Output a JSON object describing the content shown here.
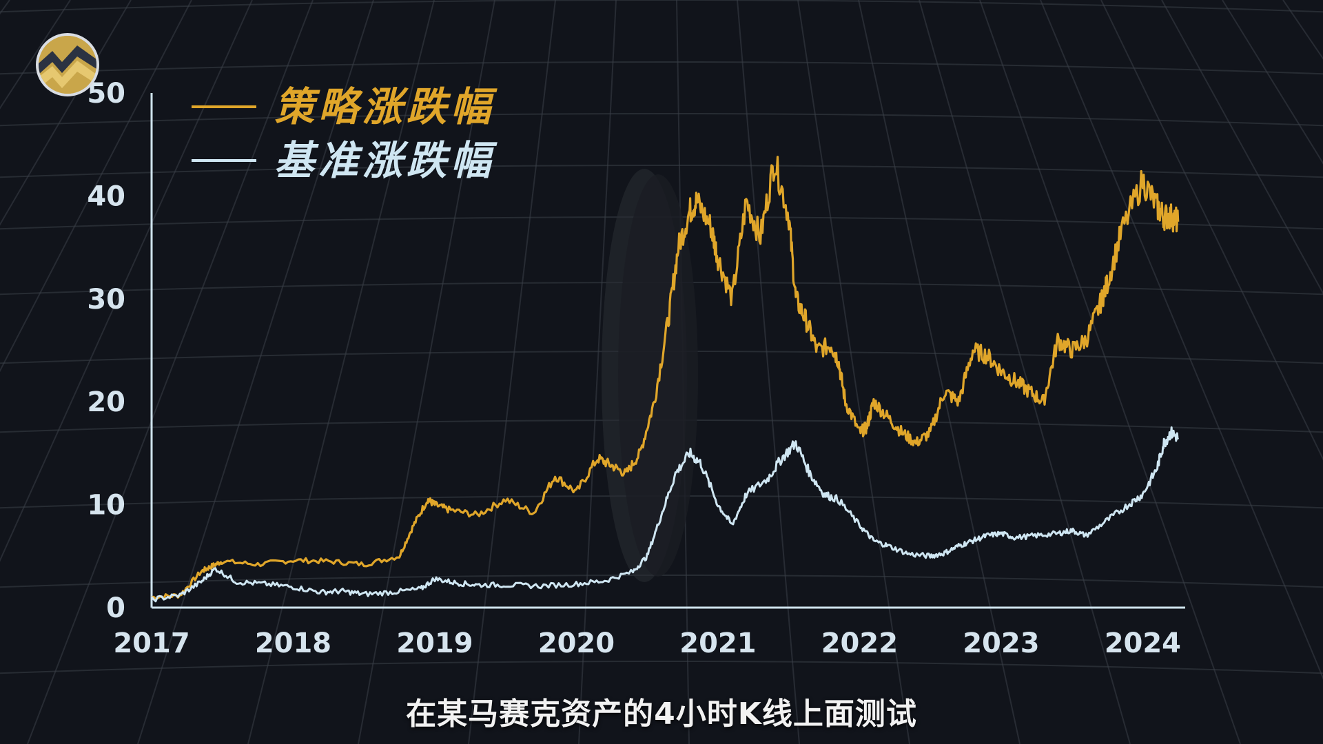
{
  "subtitle": "在某马赛克资产的4小时K线上面测试",
  "colors": {
    "background": "#11141b",
    "grid": "#3a3f47",
    "axis": "#cfe3ee",
    "strategy": "#e0a62a",
    "benchmark": "#cfe6f2",
    "tick_text": "#d6e4ee"
  },
  "logo_icon": "zigzag-coin-icon",
  "chart_data": {
    "type": "line",
    "title": "",
    "xlabel": "",
    "ylabel": "",
    "xlim": [
      2017.0,
      2024.3
    ],
    "ylim": [
      0,
      50
    ],
    "x_ticks": [
      "2017",
      "2018",
      "2019",
      "2020",
      "2021",
      "2022",
      "2023",
      "2024"
    ],
    "y_ticks": [
      "0",
      "10",
      "20",
      "30",
      "40",
      "50"
    ],
    "legend_position": "top-left",
    "grid": true,
    "series": [
      {
        "name": "策略涨跌幅",
        "color": "#e0a62a",
        "x": [
          2017.0,
          2017.2,
          2017.35,
          2017.42,
          2017.5,
          2017.75,
          2018.0,
          2018.25,
          2018.5,
          2018.75,
          2018.85,
          2018.95,
          2019.0,
          2019.1,
          2019.3,
          2019.5,
          2019.7,
          2019.85,
          2020.0,
          2020.15,
          2020.25,
          2020.35,
          2020.45,
          2020.55,
          2020.65,
          2020.72,
          2020.8,
          2020.85,
          2020.95,
          2021.0,
          2021.1,
          2021.2,
          2021.3,
          2021.4,
          2021.5,
          2021.55,
          2021.62,
          2021.7,
          2021.8,
          2021.85,
          2021.9,
          2022.0,
          2022.05,
          2022.1,
          2022.2,
          2022.3,
          2022.4,
          2022.5,
          2022.6,
          2022.7,
          2022.8,
          2022.9,
          2023.0,
          2023.1,
          2023.2,
          2023.3,
          2023.4,
          2023.5,
          2023.6,
          2023.7,
          2023.75,
          2023.85,
          2024.0,
          2024.1,
          2024.15,
          2024.2,
          2024.25
        ],
        "y": [
          1.0,
          1.2,
          3.5,
          4.0,
          4.5,
          4.2,
          4.6,
          4.5,
          4.2,
          5.0,
          8.0,
          10.5,
          10.0,
          9.5,
          9.0,
          10.5,
          9.2,
          12.8,
          11.2,
          14.5,
          13.8,
          13.0,
          15.0,
          20.0,
          28.0,
          35.0,
          38.5,
          39.5,
          37.0,
          34.0,
          30.0,
          39.5,
          36.0,
          43.5,
          38.0,
          30.0,
          28.0,
          25.0,
          25.5,
          24.0,
          20.0,
          17.0,
          17.5,
          20.0,
          18.5,
          17.0,
          16.0,
          17.0,
          21.0,
          20.0,
          25.0,
          24.5,
          23.0,
          22.0,
          21.0,
          20.0,
          26.0,
          25.0,
          26.0,
          29.5,
          31.5,
          36.5,
          41.5,
          39.0,
          38.0,
          38.0,
          37.5
        ]
      },
      {
        "name": "基准涨跌幅",
        "color": "#cfe6f2",
        "x": [
          2017.0,
          2017.2,
          2017.35,
          2017.45,
          2017.6,
          2017.8,
          2018.0,
          2018.2,
          2018.35,
          2018.5,
          2018.7,
          2018.9,
          2019.0,
          2019.15,
          2019.3,
          2019.5,
          2019.75,
          2020.0,
          2020.2,
          2020.4,
          2020.5,
          2020.6,
          2020.7,
          2020.8,
          2020.88,
          2021.0,
          2021.1,
          2021.2,
          2021.35,
          2021.45,
          2021.55,
          2021.65,
          2021.75,
          2021.85,
          2022.0,
          2022.1,
          2022.2,
          2022.35,
          2022.5,
          2022.6,
          2022.7,
          2022.8,
          2022.9,
          2023.0,
          2023.1,
          2023.25,
          2023.4,
          2023.5,
          2023.6,
          2023.75,
          2023.9,
          2024.0,
          2024.1,
          2024.15,
          2024.2,
          2024.25
        ],
        "y": [
          0.8,
          1.2,
          2.5,
          3.8,
          2.5,
          2.3,
          2.0,
          1.5,
          1.6,
          1.3,
          1.5,
          1.8,
          2.8,
          2.4,
          2.2,
          2.2,
          2.1,
          2.3,
          2.6,
          3.5,
          5.0,
          9.0,
          13.0,
          15.0,
          14.0,
          10.0,
          8.0,
          11.0,
          12.5,
          14.5,
          16.0,
          13.0,
          11.0,
          10.5,
          8.0,
          6.5,
          6.0,
          5.2,
          5.0,
          5.3,
          6.0,
          6.5,
          7.0,
          7.2,
          6.8,
          7.0,
          7.2,
          7.5,
          7.0,
          8.5,
          10.0,
          11.0,
          13.5,
          16.0,
          17.0,
          16.5
        ]
      }
    ]
  }
}
